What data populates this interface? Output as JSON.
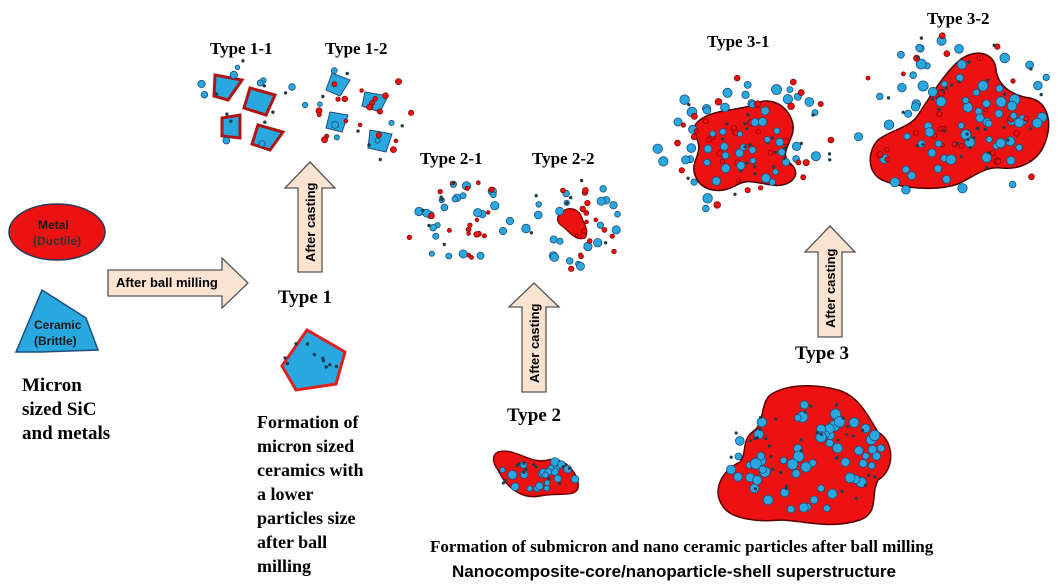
{
  "labels": {
    "metal": "Metal",
    "metal_sub": "(Ductile)",
    "ceramic": "Ceramic",
    "ceramic_sub": "(Brittle)",
    "micron": "Micron\nsized SiC\nand metals",
    "ball_milling": "After ball milling",
    "after_casting": "After casting",
    "type1": "Type 1",
    "type1_1": "Type 1-1",
    "type1_2": "Type 1-2",
    "type2": "Type 2",
    "type2_1": "Type 2-1",
    "type2_2": "Type 2-2",
    "type3": "Type 3",
    "type3_1": "Type 3-1",
    "type3_2": "Type 3-2",
    "formation_micron": "Formation of\nmicron sized\nceramics with\na lower\nparticles size\nafter ball\nmilling",
    "formation_submicron": "Formation of submicron and nano ceramic particles after ball milling",
    "superstructure": "Nanocomposite-core/nanoparticle-shell superstructure"
  },
  "colors": {
    "metal": "#ee1111",
    "metal_dark": "#8a0000",
    "ceramic": "#29a8e0",
    "ceramic_dark": "#1f4e79",
    "arrow_fill": "#fbe3d2",
    "arrow_stroke": "#555555",
    "dark_particle": "#1f3d4a"
  }
}
